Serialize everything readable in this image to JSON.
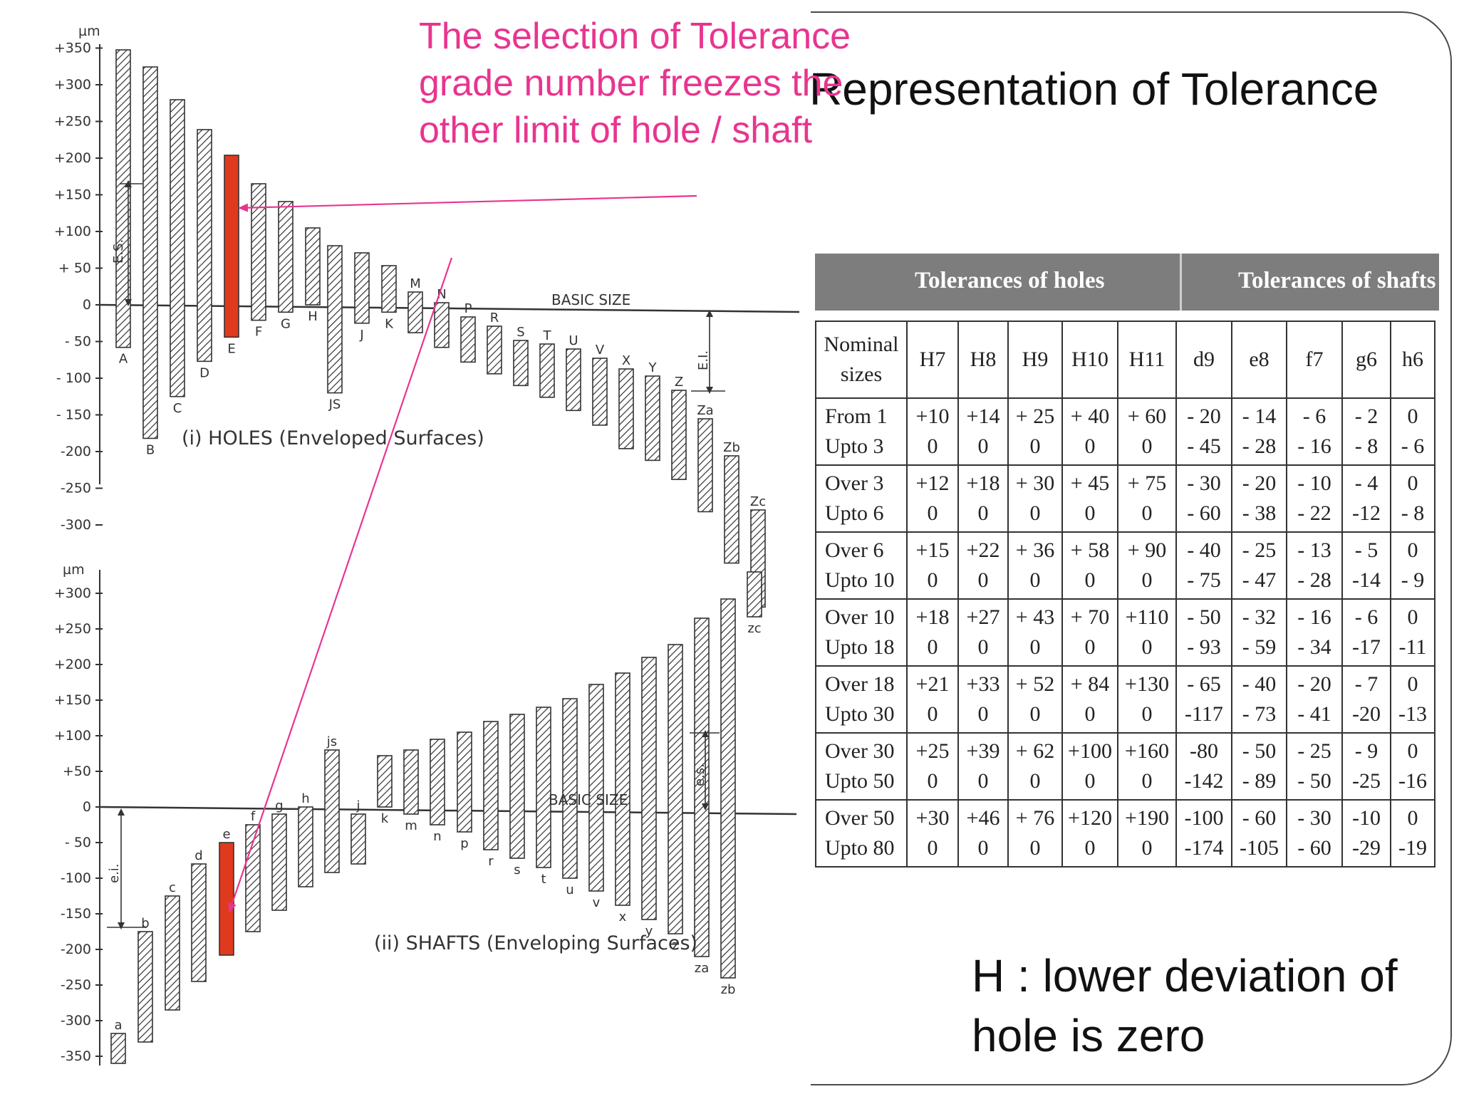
{
  "title": "Representation of Tolerance",
  "callout": {
    "lines": [
      "The selection of Tolerance",
      "grade number freezes the",
      "other limit of hole /  shaft"
    ],
    "color": "#e8358f"
  },
  "note": {
    "line1": "H  :  lower deviation of",
    "line2": "hole is zero"
  },
  "diagram": {
    "unit": "µm",
    "holes_axis_ticks": [
      "+350",
      "+300",
      "+250",
      "+200",
      "+150",
      "+100",
      "+ 50",
      "0",
      "- 50",
      "- 100",
      "- 150",
      "-200",
      "-250",
      "-300"
    ],
    "shafts_axis_ticks": [
      "+300",
      "+250",
      "+200",
      "+150",
      "+100",
      "+50",
      "0",
      "- 50",
      "-100",
      "-150",
      "-200",
      "-250",
      "-300",
      "-350"
    ],
    "holes_letters": [
      "A",
      "B",
      "C",
      "D",
      "E",
      "F",
      "G",
      "H",
      "JS",
      "J",
      "K",
      "M",
      "N",
      "P",
      "R",
      "S",
      "T",
      "U",
      "V",
      "X",
      "Y",
      "Z",
      "Za",
      "Zb",
      "Zc"
    ],
    "shafts_letters": [
      "a",
      "b",
      "c",
      "d",
      "e",
      "f",
      "g",
      "h",
      "js",
      "j",
      "k",
      "m",
      "n",
      "p",
      "r",
      "s",
      "t",
      "u",
      "v",
      "x",
      "y",
      "z",
      "za",
      "zb",
      "zc"
    ],
    "holes_caption": "(i) HOLES (Enveloped  Surfaces)",
    "shafts_caption": "(ii) SHAFTS (Enveloping  Surfaces)",
    "basic_size": "BASIC   SIZE",
    "es_upper": "E.S.",
    "ei_upper": "E.I.",
    "es_lower": "e.s.",
    "ei_lower": "e.i.",
    "highlight_color": "#e03a1e"
  },
  "table": {
    "header_holes": "Tolerances  of  holes",
    "header_shafts": "Tolerances  of  shafts",
    "nominal_l1": "Nominal",
    "nominal_l2": "sizes",
    "columns": [
      "H7",
      "H8",
      "H9",
      "H10",
      "H11",
      "d9",
      "e8",
      "f7",
      "g6",
      "h6"
    ],
    "rows": [
      {
        "l1": "From  1",
        "l2": "Upto  3",
        "cells": [
          [
            "+10",
            "0"
          ],
          [
            "+14",
            "0"
          ],
          [
            "+ 25",
            "0"
          ],
          [
            "+ 40",
            "0"
          ],
          [
            "+ 60",
            "0"
          ],
          [
            "- 20",
            "- 45"
          ],
          [
            "- 14",
            "- 28"
          ],
          [
            "-  6",
            "- 16"
          ],
          [
            "- 2",
            "- 8"
          ],
          [
            "0",
            "- 6"
          ]
        ]
      },
      {
        "l1": "Over  3",
        "l2": "Upto  6",
        "cells": [
          [
            "+12",
            "0"
          ],
          [
            "+18",
            "0"
          ],
          [
            "+ 30",
            "0"
          ],
          [
            "+ 45",
            "0"
          ],
          [
            "+ 75",
            "0"
          ],
          [
            "- 30",
            "- 60"
          ],
          [
            "- 20",
            "- 38"
          ],
          [
            "- 10",
            "- 22"
          ],
          [
            "- 4",
            "-12"
          ],
          [
            "0",
            "- 8"
          ]
        ]
      },
      {
        "l1": "Over  6",
        "l2": "Upto  10",
        "cells": [
          [
            "+15",
            "0"
          ],
          [
            "+22",
            "0"
          ],
          [
            "+ 36",
            "0"
          ],
          [
            "+ 58",
            "0"
          ],
          [
            "+ 90",
            "0"
          ],
          [
            "- 40",
            "- 75"
          ],
          [
            "- 25",
            "- 47"
          ],
          [
            "- 13",
            "- 28"
          ],
          [
            "- 5",
            "-14"
          ],
          [
            "0",
            "- 9"
          ]
        ]
      },
      {
        "l1": "Over  10",
        "l2": "Upto  18",
        "cells": [
          [
            "+18",
            "0"
          ],
          [
            "+27",
            "0"
          ],
          [
            "+ 43",
            "0"
          ],
          [
            "+ 70",
            "0"
          ],
          [
            "+110",
            "0"
          ],
          [
            "- 50",
            "- 93"
          ],
          [
            "- 32",
            "- 59"
          ],
          [
            "- 16",
            "- 34"
          ],
          [
            "- 6",
            "-17"
          ],
          [
            "0",
            "-11"
          ]
        ]
      },
      {
        "l1": "Over  18",
        "l2": "Upto  30",
        "cells": [
          [
            "+21",
            "0"
          ],
          [
            "+33",
            "0"
          ],
          [
            "+ 52",
            "0"
          ],
          [
            "+ 84",
            "0"
          ],
          [
            "+130",
            "0"
          ],
          [
            "- 65",
            "-117"
          ],
          [
            "- 40",
            "- 73"
          ],
          [
            "- 20",
            "- 41"
          ],
          [
            "- 7",
            "-20"
          ],
          [
            "0",
            "-13"
          ]
        ]
      },
      {
        "l1": "Over  30",
        "l2": "Upto  50",
        "cells": [
          [
            "+25",
            "0"
          ],
          [
            "+39",
            "0"
          ],
          [
            "+ 62",
            "0"
          ],
          [
            "+100",
            "0"
          ],
          [
            "+160",
            "0"
          ],
          [
            "-80",
            "-142"
          ],
          [
            "- 50",
            "- 89"
          ],
          [
            "- 25",
            "- 50"
          ],
          [
            "- 9",
            "-25"
          ],
          [
            "0",
            "-16"
          ]
        ]
      },
      {
        "l1": "Over  50",
        "l2": "Upto  80",
        "cells": [
          [
            "+30",
            "0"
          ],
          [
            "+46",
            "0"
          ],
          [
            "+ 76",
            "0"
          ],
          [
            "+120",
            "0"
          ],
          [
            "+190",
            "0"
          ],
          [
            "-100",
            "-174"
          ],
          [
            "- 60",
            "-105"
          ],
          [
            "- 30",
            "- 60"
          ],
          [
            "-10",
            "-29"
          ],
          [
            "0",
            "-19"
          ]
        ]
      }
    ]
  }
}
